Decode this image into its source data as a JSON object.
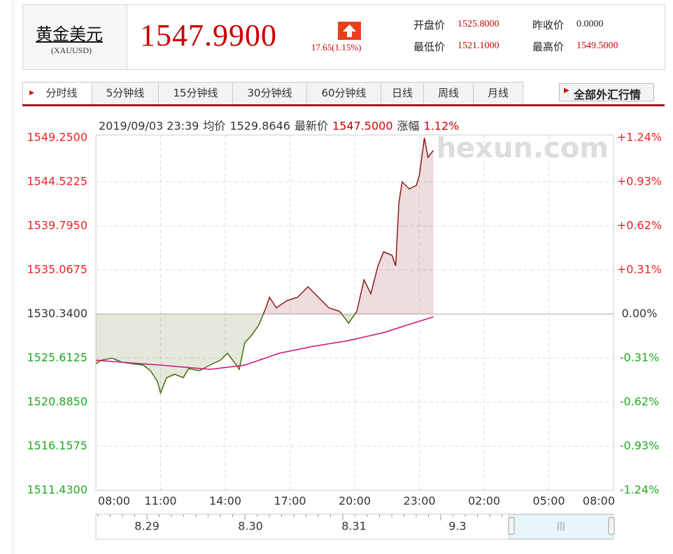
{
  "header": {
    "name": "黄金美元",
    "code": "(XAUUSD)",
    "price": "1547.9900",
    "change": "17.65(1.15%)",
    "stats": [
      {
        "label": "开盘价",
        "value": "1525.8000"
      },
      {
        "label": "昨收价",
        "value": "0.0000"
      },
      {
        "label": "最低价",
        "value": "1521.1000"
      },
      {
        "label": "最高价",
        "value": "1549.5000"
      }
    ]
  },
  "tabs": [
    "分时线",
    "5分钟线",
    "15分钟线",
    "30分钟线",
    "60分钟线",
    "日线",
    "周线",
    "月线"
  ],
  "active_tab": 0,
  "all_button": "全部外汇行情",
  "chart_data": {
    "type": "line",
    "info": {
      "datetime": "2019/09/03 23:39",
      "avg_label": "均价",
      "avg": "1529.8646",
      "last_label": "最新价",
      "last": "1547.5000",
      "chg_label": "涨幅",
      "chg": "1.12%"
    },
    "watermark": "hexun.com",
    "xlim": [
      8,
      32
    ],
    "xticks": [
      {
        "value": 8,
        "label": "08:00"
      },
      {
        "value": 11,
        "label": "11:00"
      },
      {
        "value": 14,
        "label": "14:00"
      },
      {
        "value": 17,
        "label": "17:00"
      },
      {
        "value": 20,
        "label": "20:00"
      },
      {
        "value": 23,
        "label": "23:00"
      },
      {
        "value": 26,
        "label": "02:00"
      },
      {
        "value": 29,
        "label": "05:00"
      },
      {
        "value": 32,
        "label": "08:00"
      }
    ],
    "ylim": [
      1511.43,
      1549.25
    ],
    "yticks": [
      {
        "value": 1549.25,
        "label": "1549.2500"
      },
      {
        "value": 1544.5225,
        "label": "1544.5225"
      },
      {
        "value": 1539.795,
        "label": "1539.7950"
      },
      {
        "value": 1535.0675,
        "label": "1535.0675"
      },
      {
        "value": 1530.34,
        "label": "1530.3400"
      },
      {
        "value": 1525.6125,
        "label": "1525.6125"
      },
      {
        "value": 1520.885,
        "label": "1520.8850"
      },
      {
        "value": 1516.1575,
        "label": "1516.1575"
      },
      {
        "value": 1511.43,
        "label": "1511.4300"
      }
    ],
    "y2lim": [
      -1.24,
      1.24
    ],
    "y2ticks": [
      {
        "value": 1.24,
        "label": "+1.24%"
      },
      {
        "value": 0.93,
        "label": "+0.93%"
      },
      {
        "value": 0.62,
        "label": "+0.62%"
      },
      {
        "value": 0.31,
        "label": "+0.31%"
      },
      {
        "value": 0,
        "label": "0.00%"
      },
      {
        "value": -0.31,
        "label": "-0.31%"
      },
      {
        "value": -0.62,
        "label": "-0.62%"
      },
      {
        "value": -0.93,
        "label": "-0.93%"
      },
      {
        "value": -1.24,
        "label": "-1.24%"
      }
    ],
    "grid": true,
    "up_color": "#8b1a1a",
    "down_color": "#4a6b10",
    "series": [
      {
        "color": "#8b1a1a",
        "x": [
          8.0,
          8.26,
          8.75,
          9.23,
          9.72,
          10.2,
          10.53,
          10.85,
          11.0,
          11.28,
          11.66,
          12.05,
          12.3,
          12.8,
          13.29,
          13.77,
          14.1,
          14.42,
          14.65,
          14.9,
          15.2,
          15.55,
          15.88,
          16.05,
          16.37,
          16.85,
          17.35,
          17.83,
          18.32,
          18.8,
          19.3,
          19.72,
          20.1,
          20.43,
          20.75,
          21.08,
          21.34,
          21.73,
          21.9,
          22.05,
          22.2,
          22.53,
          22.86,
          23.0,
          23.23,
          23.4,
          23.65
        ],
        "values": [
          1525.01,
          1525.39,
          1525.61,
          1525.16,
          1525.01,
          1524.86,
          1524.26,
          1523.14,
          1521.86,
          1523.51,
          1523.89,
          1523.51,
          1524.49,
          1524.26,
          1524.86,
          1525.39,
          1526.14,
          1525.16,
          1524.41,
          1527.26,
          1528.01,
          1529.14,
          1531.01,
          1532.14,
          1531.01,
          1531.77,
          1532.14,
          1533.27,
          1532.14,
          1531.01,
          1530.64,
          1529.36,
          1530.64,
          1534.02,
          1532.52,
          1535.52,
          1537.02,
          1536.64,
          1535.52,
          1542.27,
          1544.52,
          1543.77,
          1544.15,
          1545.27,
          1549.25,
          1547.15,
          1547.9
        ]
      },
      {
        "color": "#d0107a",
        "x": [
          8.0,
          11.0,
          13.3,
          14.9,
          16.5,
          18.1,
          19.7,
          21.4,
          22.4,
          23.65
        ],
        "values": [
          1525.39,
          1524.86,
          1524.41,
          1524.86,
          1526.14,
          1526.89,
          1527.49,
          1528.39,
          1529.14,
          1530.04
        ]
      }
    ],
    "navigator_labels": [
      "8.29",
      "8.30",
      "8.31",
      "9.3"
    ]
  }
}
